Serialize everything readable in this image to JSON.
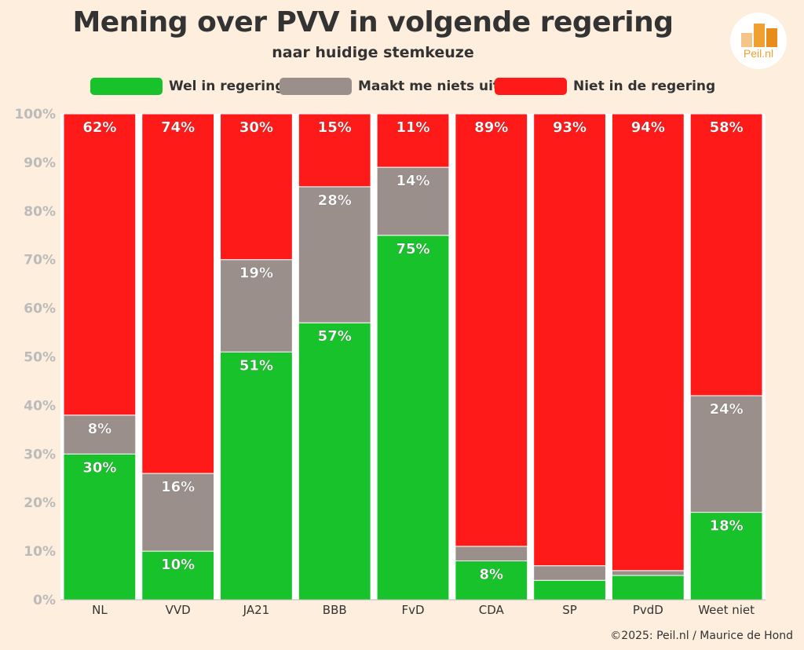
{
  "title": "Mening over PVV in volgende regering",
  "subtitle": "naar huidige stemkeuze",
  "logo_text": "Peil.nl",
  "footer": "©2025: Peil.nl / Maurice de Hond",
  "colors": {
    "wel": "#18c22b",
    "neutraal": "#9a8f8a",
    "niet": "#ff1a1a",
    "background": "#fdeedd",
    "plot_background": "#ffffff",
    "axis_text": "#bbbbbb"
  },
  "chart_data": {
    "type": "bar",
    "stacked": true,
    "title": "Mening over PVV in volgende regering",
    "subtitle": "naar huidige stemkeuze",
    "xlabel": "",
    "ylabel": "",
    "ylim": [
      0,
      100
    ],
    "yticks": [
      "0%",
      "10%",
      "20%",
      "30%",
      "40%",
      "50%",
      "60%",
      "70%",
      "80%",
      "90%",
      "100%"
    ],
    "legend_position": "top",
    "categories": [
      "NL",
      "VVD",
      "JA21",
      "BBB",
      "FvD",
      "CDA",
      "SP",
      "PvdD",
      "Weet niet"
    ],
    "series": [
      {
        "name": "Wel in regering",
        "color": "#18c22b",
        "values": [
          30,
          10,
          51,
          57,
          75,
          8,
          4,
          5,
          18
        ],
        "labels": [
          "30%",
          "10%",
          "51%",
          "57%",
          "75%",
          "8%",
          "",
          "",
          "18%"
        ]
      },
      {
        "name": "Maakt me niets uit",
        "color": "#9a8f8a",
        "values": [
          8,
          16,
          19,
          28,
          14,
          3,
          3,
          1,
          24
        ],
        "labels": [
          "8%",
          "16%",
          "19%",
          "28%",
          "14%",
          "",
          "",
          "",
          "24%"
        ]
      },
      {
        "name": "Niet in de regering",
        "color": "#ff1a1a",
        "values": [
          62,
          74,
          30,
          15,
          11,
          89,
          93,
          94,
          58
        ],
        "labels": [
          "62%",
          "74%",
          "30%",
          "15%",
          "11%",
          "89%",
          "93%",
          "94%",
          "58%"
        ]
      }
    ]
  }
}
